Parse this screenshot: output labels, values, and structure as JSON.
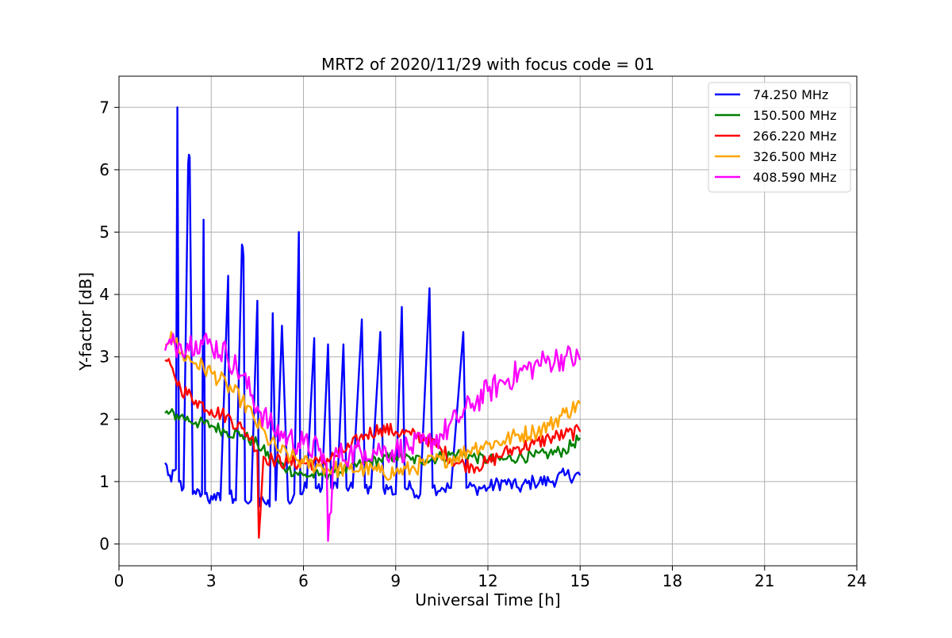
{
  "chart_data": {
    "type": "line",
    "title": "MRT2 of 2020/11/29 with focus code = 01",
    "xlabel": "Universal Time [h]",
    "ylabel": "Y-factor [dB]",
    "xlim": [
      0,
      24
    ],
    "ylim": [
      -0.35,
      7.5
    ],
    "xticks": [
      0,
      3,
      6,
      9,
      12,
      15,
      18,
      21,
      24
    ],
    "yticks": [
      0,
      1,
      2,
      3,
      4,
      5,
      6,
      7
    ],
    "xtick_labels": [
      "0",
      "3",
      "6",
      "9",
      "12",
      "15",
      "18",
      "21",
      "24"
    ],
    "ytick_labels": [
      "0",
      "1",
      "2",
      "3",
      "4",
      "5",
      "6",
      "7"
    ],
    "grid": true,
    "legend_position": "top-right",
    "series": [
      {
        "name": " 74.250 MHz",
        "color": "#0000ff",
        "x": [
          1.5,
          1.7,
          1.85,
          1.9,
          1.95,
          2.1,
          2.25,
          2.3,
          2.4,
          2.5,
          2.7,
          2.75,
          2.8,
          2.9,
          3.1,
          3.3,
          3.55,
          3.6,
          3.8,
          4.0,
          4.05,
          4.1,
          4.3,
          4.5,
          4.55,
          4.7,
          4.9,
          5.0,
          5.1,
          5.3,
          5.5,
          5.7,
          5.85,
          5.9,
          6.1,
          6.35,
          6.4,
          6.6,
          6.8,
          6.9,
          7.1,
          7.3,
          7.4,
          7.6,
          7.9,
          8.0,
          8.2,
          8.5,
          8.6,
          8.8,
          9.0,
          9.2,
          9.3,
          9.5,
          9.8,
          10.1,
          10.2,
          10.5,
          10.8,
          11.2,
          11.3,
          11.6,
          12.0,
          12.5,
          13.0,
          13.5,
          14.0,
          14.5,
          15.0
        ],
        "y": [
          1.3,
          1.0,
          1.2,
          7.0,
          1.0,
          0.9,
          6.1,
          6.2,
          0.8,
          0.8,
          0.8,
          5.2,
          0.8,
          0.7,
          0.8,
          0.7,
          4.3,
          0.8,
          0.7,
          4.8,
          4.6,
          0.7,
          0.7,
          3.9,
          0.6,
          0.7,
          0.6,
          3.7,
          0.7,
          3.5,
          0.7,
          0.8,
          5.0,
          0.8,
          0.9,
          3.3,
          0.9,
          0.9,
          3.2,
          0.9,
          0.9,
          3.2,
          0.9,
          0.9,
          3.6,
          0.9,
          0.9,
          3.4,
          0.9,
          0.9,
          0.8,
          3.8,
          0.9,
          0.9,
          0.8,
          4.1,
          0.9,
          0.9,
          0.9,
          3.4,
          0.9,
          0.9,
          0.9,
          1.0,
          0.9,
          1.0,
          1.0,
          1.1,
          1.1
        ]
      },
      {
        "name": "150.500 MHz",
        "color": "#008000",
        "x": [
          1.5,
          2.0,
          2.5,
          3.0,
          3.5,
          4.0,
          4.5,
          5.0,
          5.5,
          6.0,
          6.5,
          7.0,
          7.5,
          8.0,
          8.5,
          9.0,
          9.5,
          10.0,
          10.5,
          11.0,
          11.5,
          12.0,
          12.5,
          13.0,
          13.5,
          14.0,
          14.5,
          15.0
        ],
        "y": [
          2.1,
          2.05,
          1.95,
          1.9,
          1.8,
          1.75,
          1.6,
          1.35,
          1.2,
          1.1,
          1.1,
          1.15,
          1.2,
          1.3,
          1.35,
          1.4,
          1.35,
          1.35,
          1.4,
          1.45,
          1.4,
          1.35,
          1.35,
          1.4,
          1.4,
          1.45,
          1.5,
          1.7
        ]
      },
      {
        "name": "266.220 MHz",
        "color": "#ff0000",
        "x": [
          1.5,
          1.8,
          2.0,
          2.5,
          3.0,
          3.5,
          4.0,
          4.3,
          4.5,
          4.55,
          4.7,
          5.0,
          5.5,
          6.0,
          6.5,
          7.0,
          7.5,
          8.0,
          8.5,
          9.0,
          9.5,
          10.0,
          10.5,
          11.0,
          11.5,
          12.0,
          12.5,
          13.0,
          13.5,
          14.0,
          14.5,
          15.0
        ],
        "y": [
          2.95,
          2.7,
          2.5,
          2.3,
          2.15,
          2.05,
          1.85,
          1.7,
          1.5,
          0.1,
          1.4,
          1.35,
          1.3,
          1.3,
          1.3,
          1.4,
          1.55,
          1.75,
          1.85,
          1.8,
          1.75,
          1.7,
          1.5,
          1.3,
          1.25,
          1.3,
          1.45,
          1.55,
          1.6,
          1.7,
          1.75,
          1.8
        ]
      },
      {
        "name": "326.500 MHz",
        "color": "#ffa500",
        "x": [
          1.5,
          1.7,
          2.0,
          2.5,
          3.0,
          3.5,
          4.0,
          4.4,
          4.8,
          5.2,
          5.6,
          6.0,
          6.5,
          7.0,
          7.5,
          8.0,
          8.5,
          9.0,
          9.5,
          10.0,
          10.5,
          11.0,
          11.5,
          12.0,
          12.5,
          13.0,
          13.5,
          14.0,
          14.5,
          15.0
        ],
        "y": [
          3.2,
          3.4,
          3.05,
          2.9,
          2.75,
          2.55,
          2.3,
          2.0,
          1.7,
          1.5,
          1.4,
          1.3,
          1.25,
          1.2,
          1.2,
          1.2,
          1.15,
          1.15,
          1.2,
          1.3,
          1.35,
          1.4,
          1.55,
          1.6,
          1.65,
          1.75,
          1.8,
          1.9,
          2.1,
          2.25
        ]
      },
      {
        "name": "408.590 MHz",
        "color": "#ff00ff",
        "x": [
          1.5,
          1.7,
          2.0,
          2.5,
          3.0,
          3.5,
          4.0,
          4.5,
          5.0,
          5.5,
          6.0,
          6.5,
          6.75,
          6.8,
          7.0,
          7.5,
          8.0,
          8.5,
          9.0,
          9.5,
          10.0,
          10.5,
          11.0,
          11.5,
          12.0,
          12.5,
          13.0,
          13.5,
          14.0,
          14.5,
          15.0
        ],
        "y": [
          3.1,
          3.2,
          3.2,
          3.25,
          3.2,
          3.05,
          2.7,
          2.2,
          1.85,
          1.7,
          1.6,
          1.5,
          1.3,
          0.05,
          1.4,
          1.45,
          1.5,
          1.5,
          1.5,
          1.55,
          1.6,
          1.75,
          2.0,
          2.25,
          2.45,
          2.6,
          2.75,
          2.85,
          2.95,
          3.0,
          2.95
        ]
      }
    ]
  }
}
